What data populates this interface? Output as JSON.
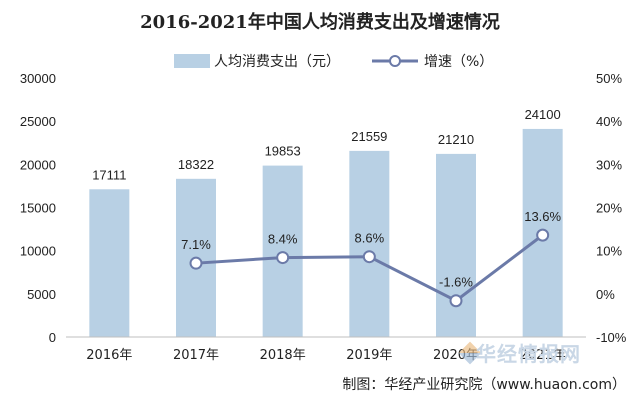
{
  "title": "2016-2021年中国人均消费支出及增速情况",
  "source": "制图：华经产业研究院（www.huaon.com）",
  "watermark": "华经情报网",
  "colors": {
    "bar": "#b8d0e4",
    "line": "#6b7aa8",
    "axis": "#bfbfbf",
    "text": "#222222"
  },
  "chart_data": {
    "type": "bar",
    "categories": [
      "2016年",
      "2017年",
      "2018年",
      "2019年",
      "2020年",
      "2021年"
    ],
    "series": [
      {
        "name": "人均消费支出（元）",
        "type": "bar",
        "axis": "left",
        "values": [
          17111,
          18322,
          19853,
          21559,
          21210,
          24100
        ],
        "labels": [
          "17111",
          "18322",
          "19853",
          "21559",
          "21210",
          "24100"
        ]
      },
      {
        "name": "增速（%）",
        "type": "line",
        "axis": "right",
        "values": [
          null,
          7.1,
          8.4,
          8.6,
          -1.6,
          13.6
        ],
        "labels": [
          "",
          "7.1%",
          "8.4%",
          "8.6%",
          "-1.6%",
          "13.6%"
        ]
      }
    ],
    "y_left": {
      "ylim": [
        0,
        30000
      ],
      "ticks": [
        "0",
        "5000",
        "10000",
        "15000",
        "20000",
        "25000",
        "30000"
      ]
    },
    "y_right": {
      "ylim": [
        -10,
        50
      ],
      "ticks": [
        "-10%",
        "0%",
        "10%",
        "20%",
        "30%",
        "40%",
        "50%"
      ]
    },
    "legend": "top",
    "grid": false
  }
}
